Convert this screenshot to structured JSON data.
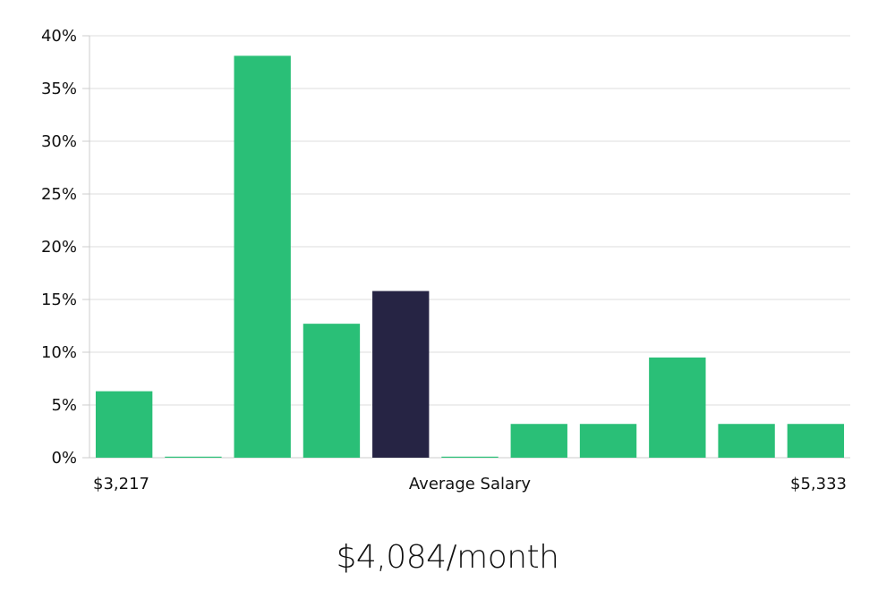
{
  "chart_data": {
    "type": "bar",
    "categories": [
      "1",
      "2",
      "3",
      "4",
      "5",
      "6",
      "7",
      "8",
      "9",
      "10",
      "11"
    ],
    "values": [
      6.3,
      0.1,
      38.1,
      12.7,
      15.8,
      0.1,
      3.2,
      3.2,
      9.5,
      3.2,
      3.2
    ],
    "highlight_index": 4,
    "ylim": [
      0,
      40
    ],
    "yticks": [
      0,
      5,
      10,
      15,
      20,
      25,
      30,
      35,
      40
    ],
    "ytick_suffix": "%",
    "grid": true,
    "xlabel_left": "$3,217",
    "xlabel_center": "Average Salary",
    "xlabel_right": "$5,333",
    "colors": {
      "bar": "#2abf77",
      "highlight": "#262444",
      "grid": "#e3e3e3",
      "axis": "#cccccc"
    }
  },
  "headline": "$4,084/month"
}
